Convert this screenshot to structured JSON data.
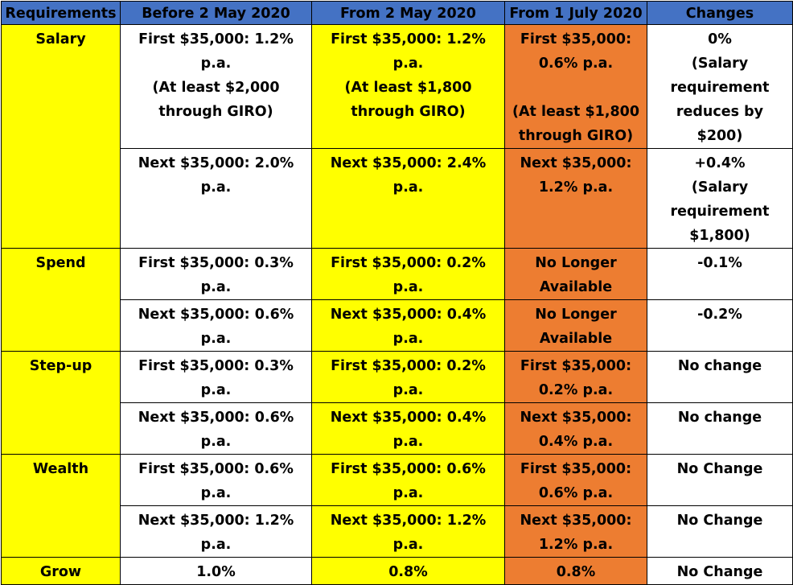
{
  "headers": [
    "Requirements",
    "Before 2 May 2020",
    "From 2 May 2020",
    "From 1 July 2020",
    "Changes"
  ],
  "rows": {
    "salary_first": {
      "requirement": "Salary",
      "before": "First $35,000: 1.2% p.a.\n(At least $2,000\nthrough GIRO)",
      "may": "First $35,000: 1.2% p.a.\n(At least $1,800\nthrough GIRO)",
      "july": "First $35,000:\n0.6% p.a.\n\n(At least $1,800\nthrough GIRO)",
      "changes": "0%\n(Salary\nrequirement\nreduces by\n$200)"
    },
    "salary_next": {
      "before": "Next $35,000: 2.0%\np.a.",
      "may": "Next $35,000: 2.4%\np.a.",
      "july": "Next $35,000:\n1.2% p.a.",
      "changes": "+0.4%\n(Salary\nrequirement\n$1,800)"
    },
    "spend_first": {
      "requirement": "Spend",
      "before": "First $35,000: 0.3% p.a.",
      "may": "First $35,000: 0.2% p.a.",
      "july": "No Longer\nAvailable",
      "changes": "-0.1%"
    },
    "spend_next": {
      "before": "Next $35,000: 0.6%\np.a.",
      "may": "Next $35,000: 0.4%\np.a.",
      "july": "No Longer\nAvailable",
      "changes": "-0.2%"
    },
    "stepup_first": {
      "requirement": "Step-up",
      "before": "First $35,000: 0.3% p.a.",
      "may": "First $35,000: 0.2% p.a.",
      "july": "First $35,000:\n0.2% p.a.",
      "changes": "No change"
    },
    "stepup_next": {
      "before": "Next $35,000: 0.6%\np.a.",
      "may": "Next $35,000: 0.4%\np.a.",
      "july": "Next $35,000:\n0.4% p.a.",
      "changes": "No change"
    },
    "wealth_first": {
      "requirement": "Wealth",
      "before": "First $35,000: 0.6% p.a.",
      "may": "First $35,000: 0.6% p.a.",
      "july": "First $35,000:\n0.6% p.a.",
      "changes": "No Change"
    },
    "wealth_next": {
      "before": "Next $35,000: 1.2%\np.a.",
      "may": "Next $35,000: 1.2%\np.a.",
      "july": "Next $35,000:\n1.2% p.a.",
      "changes": "No Change"
    },
    "grow": {
      "requirement": "Grow",
      "before": "1.0%",
      "may": "0.8%",
      "july": "0.8%",
      "changes": "No Change"
    }
  },
  "colors": {
    "header": "#4472c4",
    "yellow": "#ffff00",
    "orange": "#ed7d31",
    "white": "#ffffff"
  }
}
